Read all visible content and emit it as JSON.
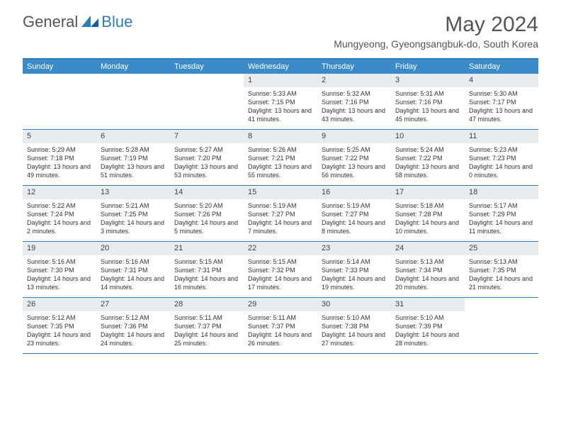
{
  "brand": {
    "text1": "General",
    "text2": "Blue"
  },
  "title": "May 2024",
  "location": "Mungyeong, Gyeongsangbuk-do, South Korea",
  "day_headers": [
    "Sunday",
    "Monday",
    "Tuesday",
    "Wednesday",
    "Thursday",
    "Friday",
    "Saturday"
  ],
  "colors": {
    "header_bg": "#3b8bc9",
    "accent": "#2e7cc0",
    "day_num_bg": "#e8ecef",
    "text": "#333333"
  },
  "weeks": [
    [
      {
        "empty": true
      },
      {
        "empty": true
      },
      {
        "empty": true
      },
      {
        "num": "1",
        "sunrise": "5:33 AM",
        "sunset": "7:15 PM",
        "daylight": "13 hours and 41 minutes."
      },
      {
        "num": "2",
        "sunrise": "5:32 AM",
        "sunset": "7:16 PM",
        "daylight": "13 hours and 43 minutes."
      },
      {
        "num": "3",
        "sunrise": "5:31 AM",
        "sunset": "7:16 PM",
        "daylight": "13 hours and 45 minutes."
      },
      {
        "num": "4",
        "sunrise": "5:30 AM",
        "sunset": "7:17 PM",
        "daylight": "13 hours and 47 minutes."
      }
    ],
    [
      {
        "num": "5",
        "sunrise": "5:29 AM",
        "sunset": "7:18 PM",
        "daylight": "13 hours and 49 minutes."
      },
      {
        "num": "6",
        "sunrise": "5:28 AM",
        "sunset": "7:19 PM",
        "daylight": "13 hours and 51 minutes."
      },
      {
        "num": "7",
        "sunrise": "5:27 AM",
        "sunset": "7:20 PM",
        "daylight": "13 hours and 53 minutes."
      },
      {
        "num": "8",
        "sunrise": "5:26 AM",
        "sunset": "7:21 PM",
        "daylight": "13 hours and 55 minutes."
      },
      {
        "num": "9",
        "sunrise": "5:25 AM",
        "sunset": "7:22 PM",
        "daylight": "13 hours and 56 minutes."
      },
      {
        "num": "10",
        "sunrise": "5:24 AM",
        "sunset": "7:22 PM",
        "daylight": "13 hours and 58 minutes."
      },
      {
        "num": "11",
        "sunrise": "5:23 AM",
        "sunset": "7:23 PM",
        "daylight": "14 hours and 0 minutes."
      }
    ],
    [
      {
        "num": "12",
        "sunrise": "5:22 AM",
        "sunset": "7:24 PM",
        "daylight": "14 hours and 2 minutes."
      },
      {
        "num": "13",
        "sunrise": "5:21 AM",
        "sunset": "7:25 PM",
        "daylight": "14 hours and 3 minutes."
      },
      {
        "num": "14",
        "sunrise": "5:20 AM",
        "sunset": "7:26 PM",
        "daylight": "14 hours and 5 minutes."
      },
      {
        "num": "15",
        "sunrise": "5:19 AM",
        "sunset": "7:27 PM",
        "daylight": "14 hours and 7 minutes."
      },
      {
        "num": "16",
        "sunrise": "5:19 AM",
        "sunset": "7:27 PM",
        "daylight": "14 hours and 8 minutes."
      },
      {
        "num": "17",
        "sunrise": "5:18 AM",
        "sunset": "7:28 PM",
        "daylight": "14 hours and 10 minutes."
      },
      {
        "num": "18",
        "sunrise": "5:17 AM",
        "sunset": "7:29 PM",
        "daylight": "14 hours and 11 minutes."
      }
    ],
    [
      {
        "num": "19",
        "sunrise": "5:16 AM",
        "sunset": "7:30 PM",
        "daylight": "14 hours and 13 minutes."
      },
      {
        "num": "20",
        "sunrise": "5:16 AM",
        "sunset": "7:31 PM",
        "daylight": "14 hours and 14 minutes."
      },
      {
        "num": "21",
        "sunrise": "5:15 AM",
        "sunset": "7:31 PM",
        "daylight": "14 hours and 16 minutes."
      },
      {
        "num": "22",
        "sunrise": "5:15 AM",
        "sunset": "7:32 PM",
        "daylight": "14 hours and 17 minutes."
      },
      {
        "num": "23",
        "sunrise": "5:14 AM",
        "sunset": "7:33 PM",
        "daylight": "14 hours and 19 minutes."
      },
      {
        "num": "24",
        "sunrise": "5:13 AM",
        "sunset": "7:34 PM",
        "daylight": "14 hours and 20 minutes."
      },
      {
        "num": "25",
        "sunrise": "5:13 AM",
        "sunset": "7:35 PM",
        "daylight": "14 hours and 21 minutes."
      }
    ],
    [
      {
        "num": "26",
        "sunrise": "5:12 AM",
        "sunset": "7:35 PM",
        "daylight": "14 hours and 23 minutes."
      },
      {
        "num": "27",
        "sunrise": "5:12 AM",
        "sunset": "7:36 PM",
        "daylight": "14 hours and 24 minutes."
      },
      {
        "num": "28",
        "sunrise": "5:11 AM",
        "sunset": "7:37 PM",
        "daylight": "14 hours and 25 minutes."
      },
      {
        "num": "29",
        "sunrise": "5:11 AM",
        "sunset": "7:37 PM",
        "daylight": "14 hours and 26 minutes."
      },
      {
        "num": "30",
        "sunrise": "5:10 AM",
        "sunset": "7:38 PM",
        "daylight": "14 hours and 27 minutes."
      },
      {
        "num": "31",
        "sunrise": "5:10 AM",
        "sunset": "7:39 PM",
        "daylight": "14 hours and 28 minutes."
      },
      {
        "empty": true
      }
    ]
  ],
  "labels": {
    "sunrise": "Sunrise:",
    "sunset": "Sunset:",
    "daylight": "Daylight:"
  }
}
